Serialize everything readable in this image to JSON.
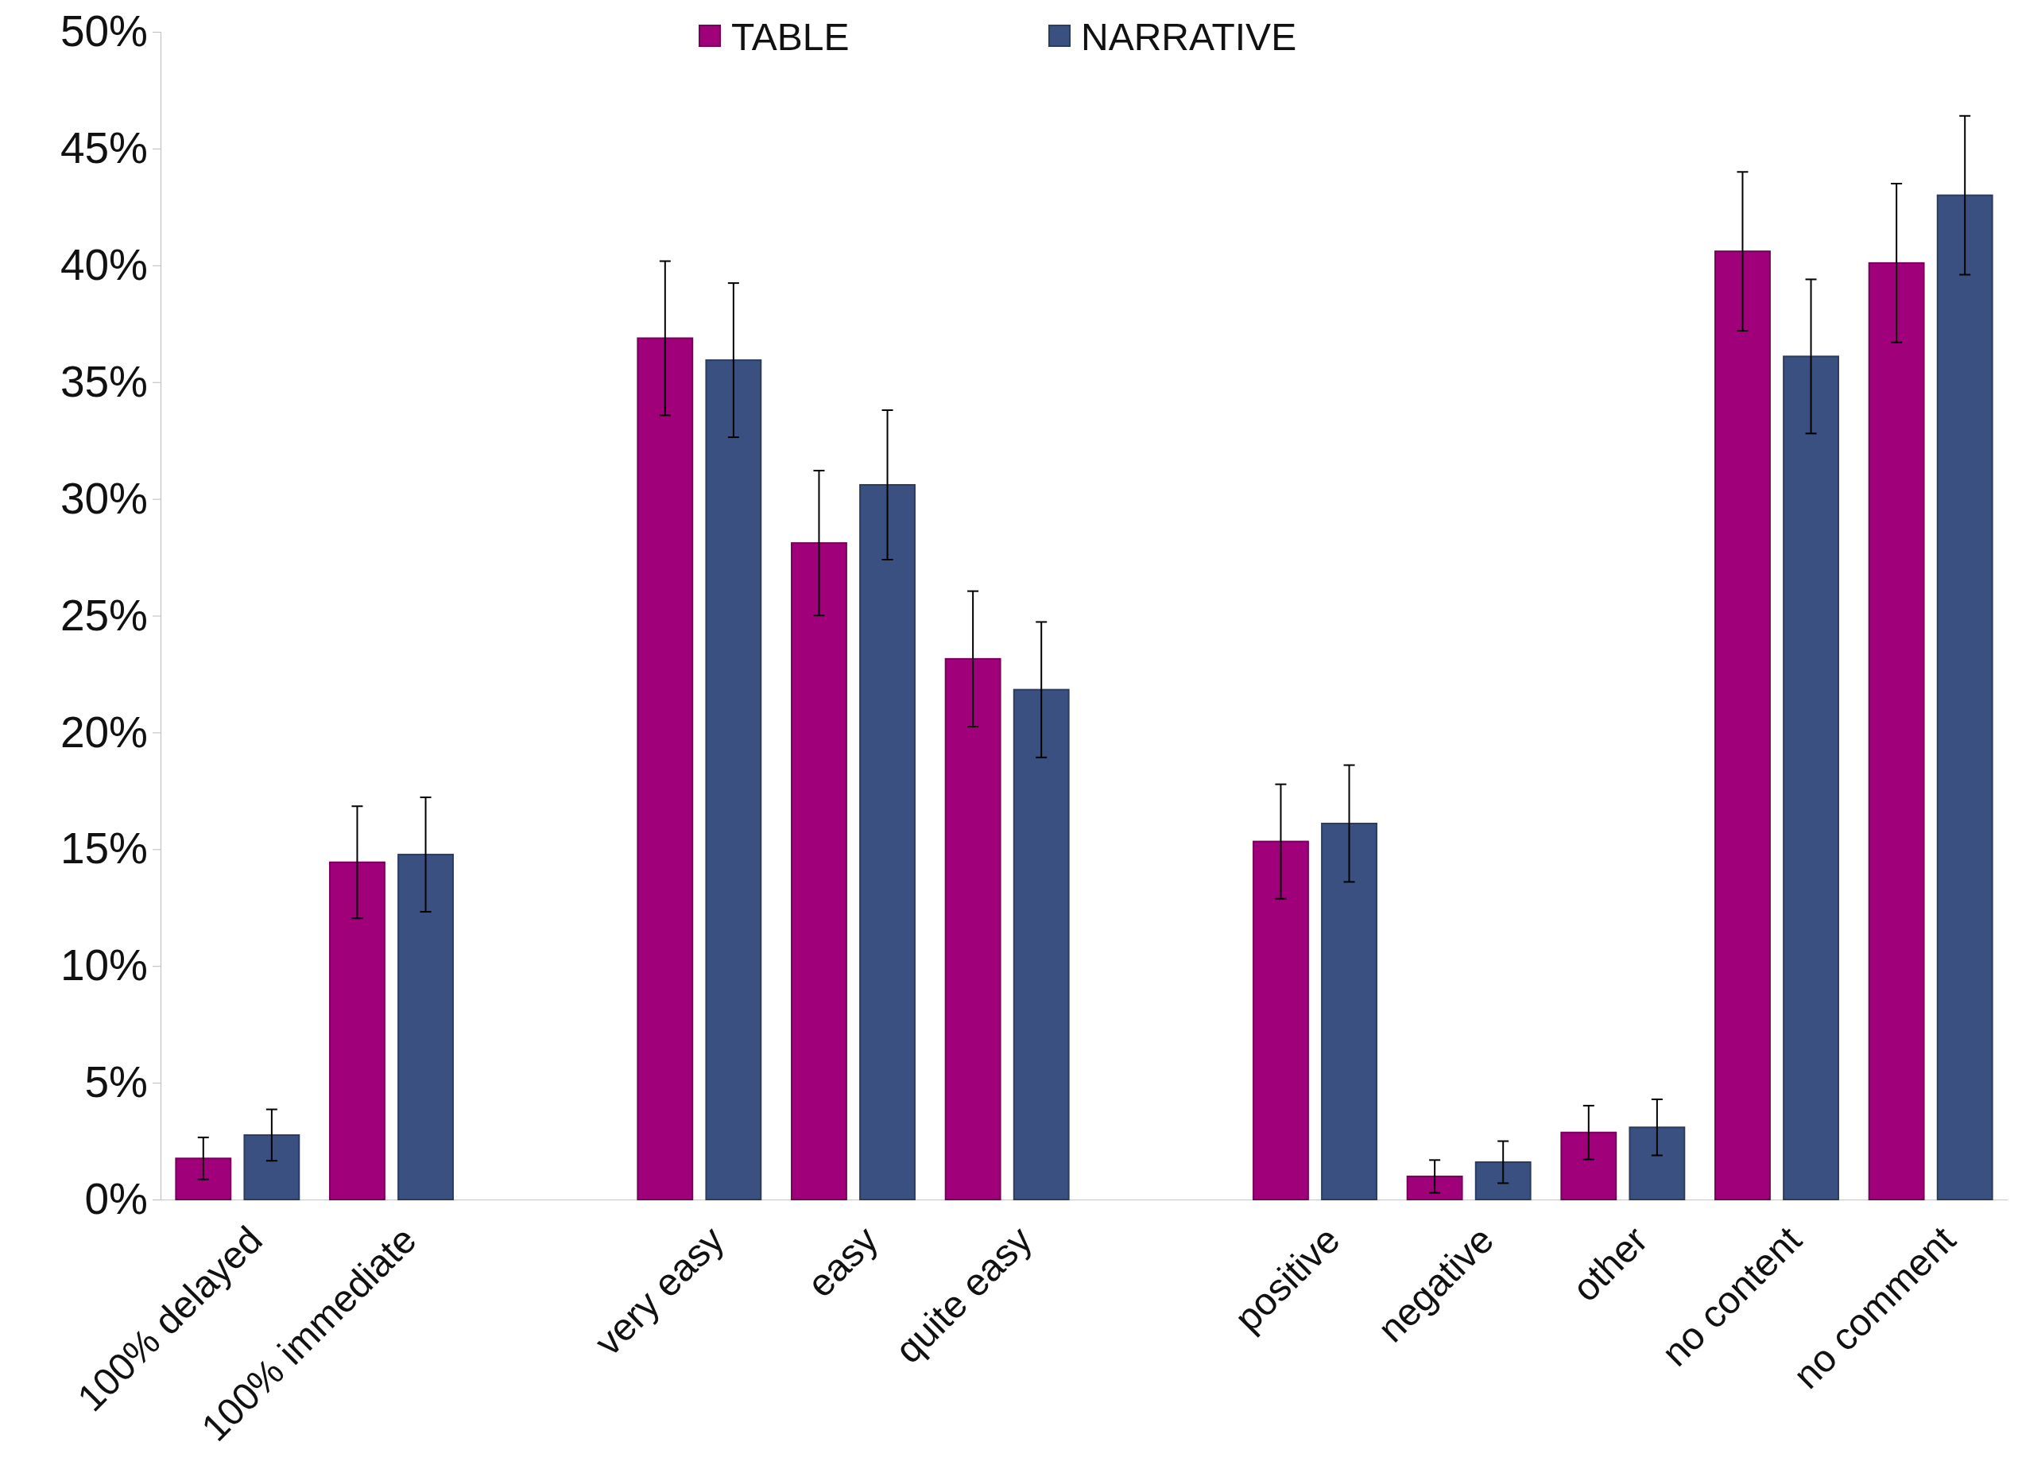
{
  "chart_data": {
    "type": "bar",
    "categories": [
      "100% delayed",
      "100% immediate",
      null,
      "very easy",
      "easy",
      "quite easy",
      null,
      "positive",
      "negative",
      "other",
      "no content",
      "no comment"
    ],
    "series": [
      {
        "name": "TABLE",
        "color": "#a0007a",
        "values": [
          1.76,
          14.44,
          null,
          36.88,
          28.11,
          23.15,
          null,
          15.33,
          0.99,
          2.87,
          40.6,
          40.1
        ],
        "errors": [
          0.9,
          2.4,
          null,
          3.3,
          3.1,
          2.9,
          null,
          2.45,
          0.7,
          1.15,
          3.4,
          3.4
        ]
      },
      {
        "name": "NARRATIVE",
        "color": "#3a5080",
        "values": [
          2.76,
          14.77,
          null,
          35.94,
          30.6,
          21.83,
          null,
          16.1,
          1.6,
          3.09,
          36.1,
          43.0
        ],
        "errors": [
          1.1,
          2.45,
          null,
          3.3,
          3.2,
          2.9,
          null,
          2.5,
          0.9,
          1.2,
          3.3,
          3.4
        ]
      }
    ],
    "ylim": [
      0,
      50
    ],
    "yticks": [
      {
        "value": 0,
        "label": "0%"
      },
      {
        "value": 5,
        "label": "5%"
      },
      {
        "value": 10,
        "label": "10%"
      },
      {
        "value": 15,
        "label": "15%"
      },
      {
        "value": 20,
        "label": "20%"
      },
      {
        "value": 25,
        "label": "25%"
      },
      {
        "value": 30,
        "label": "30%"
      },
      {
        "value": 35,
        "label": "35%"
      },
      {
        "value": 40,
        "label": "40%"
      },
      {
        "value": 45,
        "label": "45%"
      },
      {
        "value": 50,
        "label": "50%"
      }
    ],
    "grid": false,
    "legend": "top"
  }
}
